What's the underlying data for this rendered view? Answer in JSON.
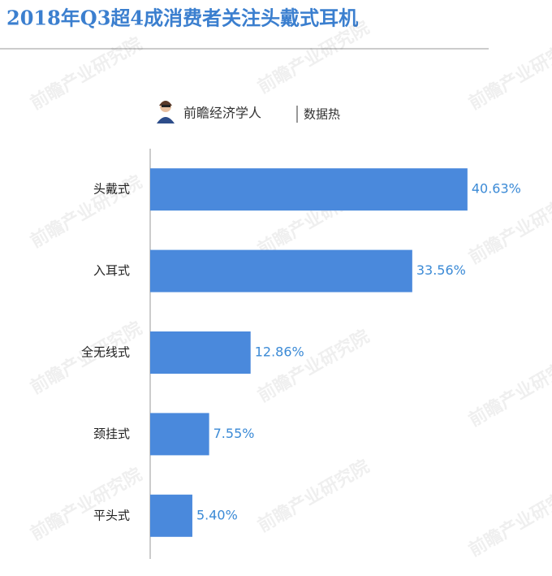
{
  "chart_data": {
    "type": "bar",
    "orientation": "horizontal",
    "title": "2018年Q3超4成消费者关注头戴式耳机",
    "source": "前瞻经济学人",
    "source_tag": "数据热",
    "watermark": "前瞻产业研究院",
    "categories": [
      "头戴式",
      "入耳式",
      "全无线式",
      "颈挂式",
      "平头式"
    ],
    "values": [
      40.63,
      33.56,
      12.86,
      7.55,
      5.4
    ],
    "value_labels": [
      "40.63%",
      "33.56%",
      "12.86%",
      "7.55%",
      "5.40%"
    ],
    "color": "#4a89dc",
    "xlim": [
      0,
      50
    ]
  }
}
